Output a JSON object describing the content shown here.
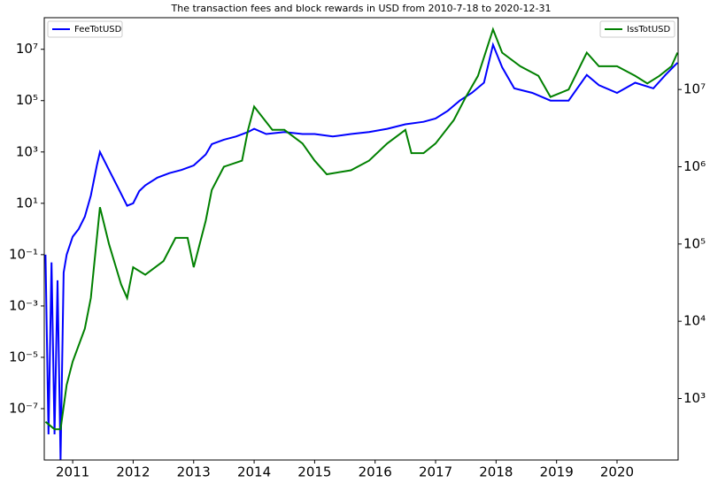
{
  "chart_data": {
    "type": "line",
    "title": "The transaction fees and block rewards in USD from 2010-7-18 to 2020-12-31",
    "xlim": [
      2010.53,
      2021.01
    ],
    "xticks": [
      2011,
      2012,
      2013,
      2014,
      2015,
      2016,
      2017,
      2018,
      2019,
      2020
    ],
    "ylim": [
      1e-09,
      170000000.0
    ],
    "ylog": true,
    "yticks": [
      {
        "value": 1e-07,
        "label": "10⁻⁷"
      },
      {
        "value": 1e-05,
        "label": "10⁻⁵"
      },
      {
        "value": 0.001,
        "label": "10⁻³"
      },
      {
        "value": 0.1,
        "label": "10⁻¹"
      },
      {
        "value": 10,
        "label": "10¹"
      },
      {
        "value": 1000,
        "label": "10³"
      },
      {
        "value": 100000,
        "label": "10⁵"
      },
      {
        "value": 10000000,
        "label": "10⁷"
      }
    ],
    "y2lim": [
      160,
      85000000.0
    ],
    "y2log": true,
    "y2ticks": [
      {
        "value": 1000,
        "label": "10³"
      },
      {
        "value": 10000,
        "label": "10⁴"
      },
      {
        "value": 100000,
        "label": "10⁵"
      },
      {
        "value": 1000000,
        "label": "10⁶"
      },
      {
        "value": 10000000,
        "label": "10⁷"
      }
    ],
    "series": [
      {
        "name": "FeeTotUSD",
        "color": "#0000ff",
        "axis": "y",
        "legend": "upper left",
        "x": [
          2010.55,
          2010.6,
          2010.65,
          2010.7,
          2010.75,
          2010.8,
          2010.85,
          2010.9,
          2011.0,
          2011.1,
          2011.2,
          2011.3,
          2011.4,
          2011.45,
          2011.6,
          2011.75,
          2011.9,
          2012.0,
          2012.1,
          2012.2,
          2012.4,
          2012.6,
          2012.8,
          2013.0,
          2013.2,
          2013.3,
          2013.5,
          2013.7,
          2013.9,
          2014.0,
          2014.2,
          2014.5,
          2014.8,
          2015.0,
          2015.3,
          2015.6,
          2015.9,
          2016.2,
          2016.5,
          2016.8,
          2017.0,
          2017.2,
          2017.4,
          2017.6,
          2017.8,
          2017.95,
          2018.1,
          2018.3,
          2018.6,
          2018.9,
          2019.2,
          2019.5,
          2019.7,
          2020.0,
          2020.3,
          2020.6,
          2020.8,
          2021.0
        ],
        "values": [
          0.1,
          1e-08,
          0.05,
          1e-08,
          0.01,
          1e-09,
          0.02,
          0.1,
          0.5,
          1,
          3,
          20,
          300,
          1000,
          200,
          40,
          8,
          10,
          30,
          50,
          100,
          150,
          200,
          300,
          800,
          2000,
          3000,
          4000,
          6000,
          8000,
          5000,
          6000,
          5000,
          5000,
          4000,
          5000,
          6000,
          8000,
          12000,
          15000,
          20000,
          40000,
          100000,
          200000,
          500000,
          15000000,
          2000000,
          300000,
          200000,
          100000,
          100000,
          1000000,
          400000,
          200000,
          500000,
          300000,
          1000000,
          3000000
        ]
      },
      {
        "name": "IssTotUSD",
        "color": "#008000",
        "axis": "y2",
        "legend": "upper right",
        "x": [
          2010.55,
          2010.7,
          2010.8,
          2010.9,
          2011.0,
          2011.2,
          2011.3,
          2011.45,
          2011.6,
          2011.8,
          2011.9,
          2012.0,
          2012.2,
          2012.5,
          2012.7,
          2012.9,
          2013.0,
          2013.2,
          2013.3,
          2013.5,
          2013.8,
          2013.9,
          2014.0,
          2014.3,
          2014.5,
          2014.8,
          2015.0,
          2015.2,
          2015.6,
          2015.9,
          2016.2,
          2016.5,
          2016.6,
          2016.8,
          2017.0,
          2017.3,
          2017.5,
          2017.7,
          2017.95,
          2018.1,
          2018.4,
          2018.7,
          2018.9,
          2019.2,
          2019.5,
          2019.7,
          2020.0,
          2020.3,
          2020.5,
          2020.7,
          2020.9,
          2021.0
        ],
        "values": [
          500,
          400,
          400,
          1500,
          3000,
          8000,
          20000,
          300000,
          100000,
          30000,
          20000,
          50000,
          40000,
          60000,
          120000,
          120000,
          50000,
          200000,
          500000,
          1000000,
          1200000,
          3000000,
          6000000,
          3000000,
          3000000,
          2000000,
          1200000,
          800000,
          900000,
          1200000,
          2000000,
          3000000,
          1500000,
          1500000,
          2000000,
          4000000,
          8000000,
          15000000,
          60000000,
          30000000,
          20000000,
          15000000,
          8000000,
          10000000,
          30000000,
          20000000,
          20000000,
          15000000,
          12000000,
          15000000,
          20000000,
          30000000
        ]
      }
    ]
  }
}
